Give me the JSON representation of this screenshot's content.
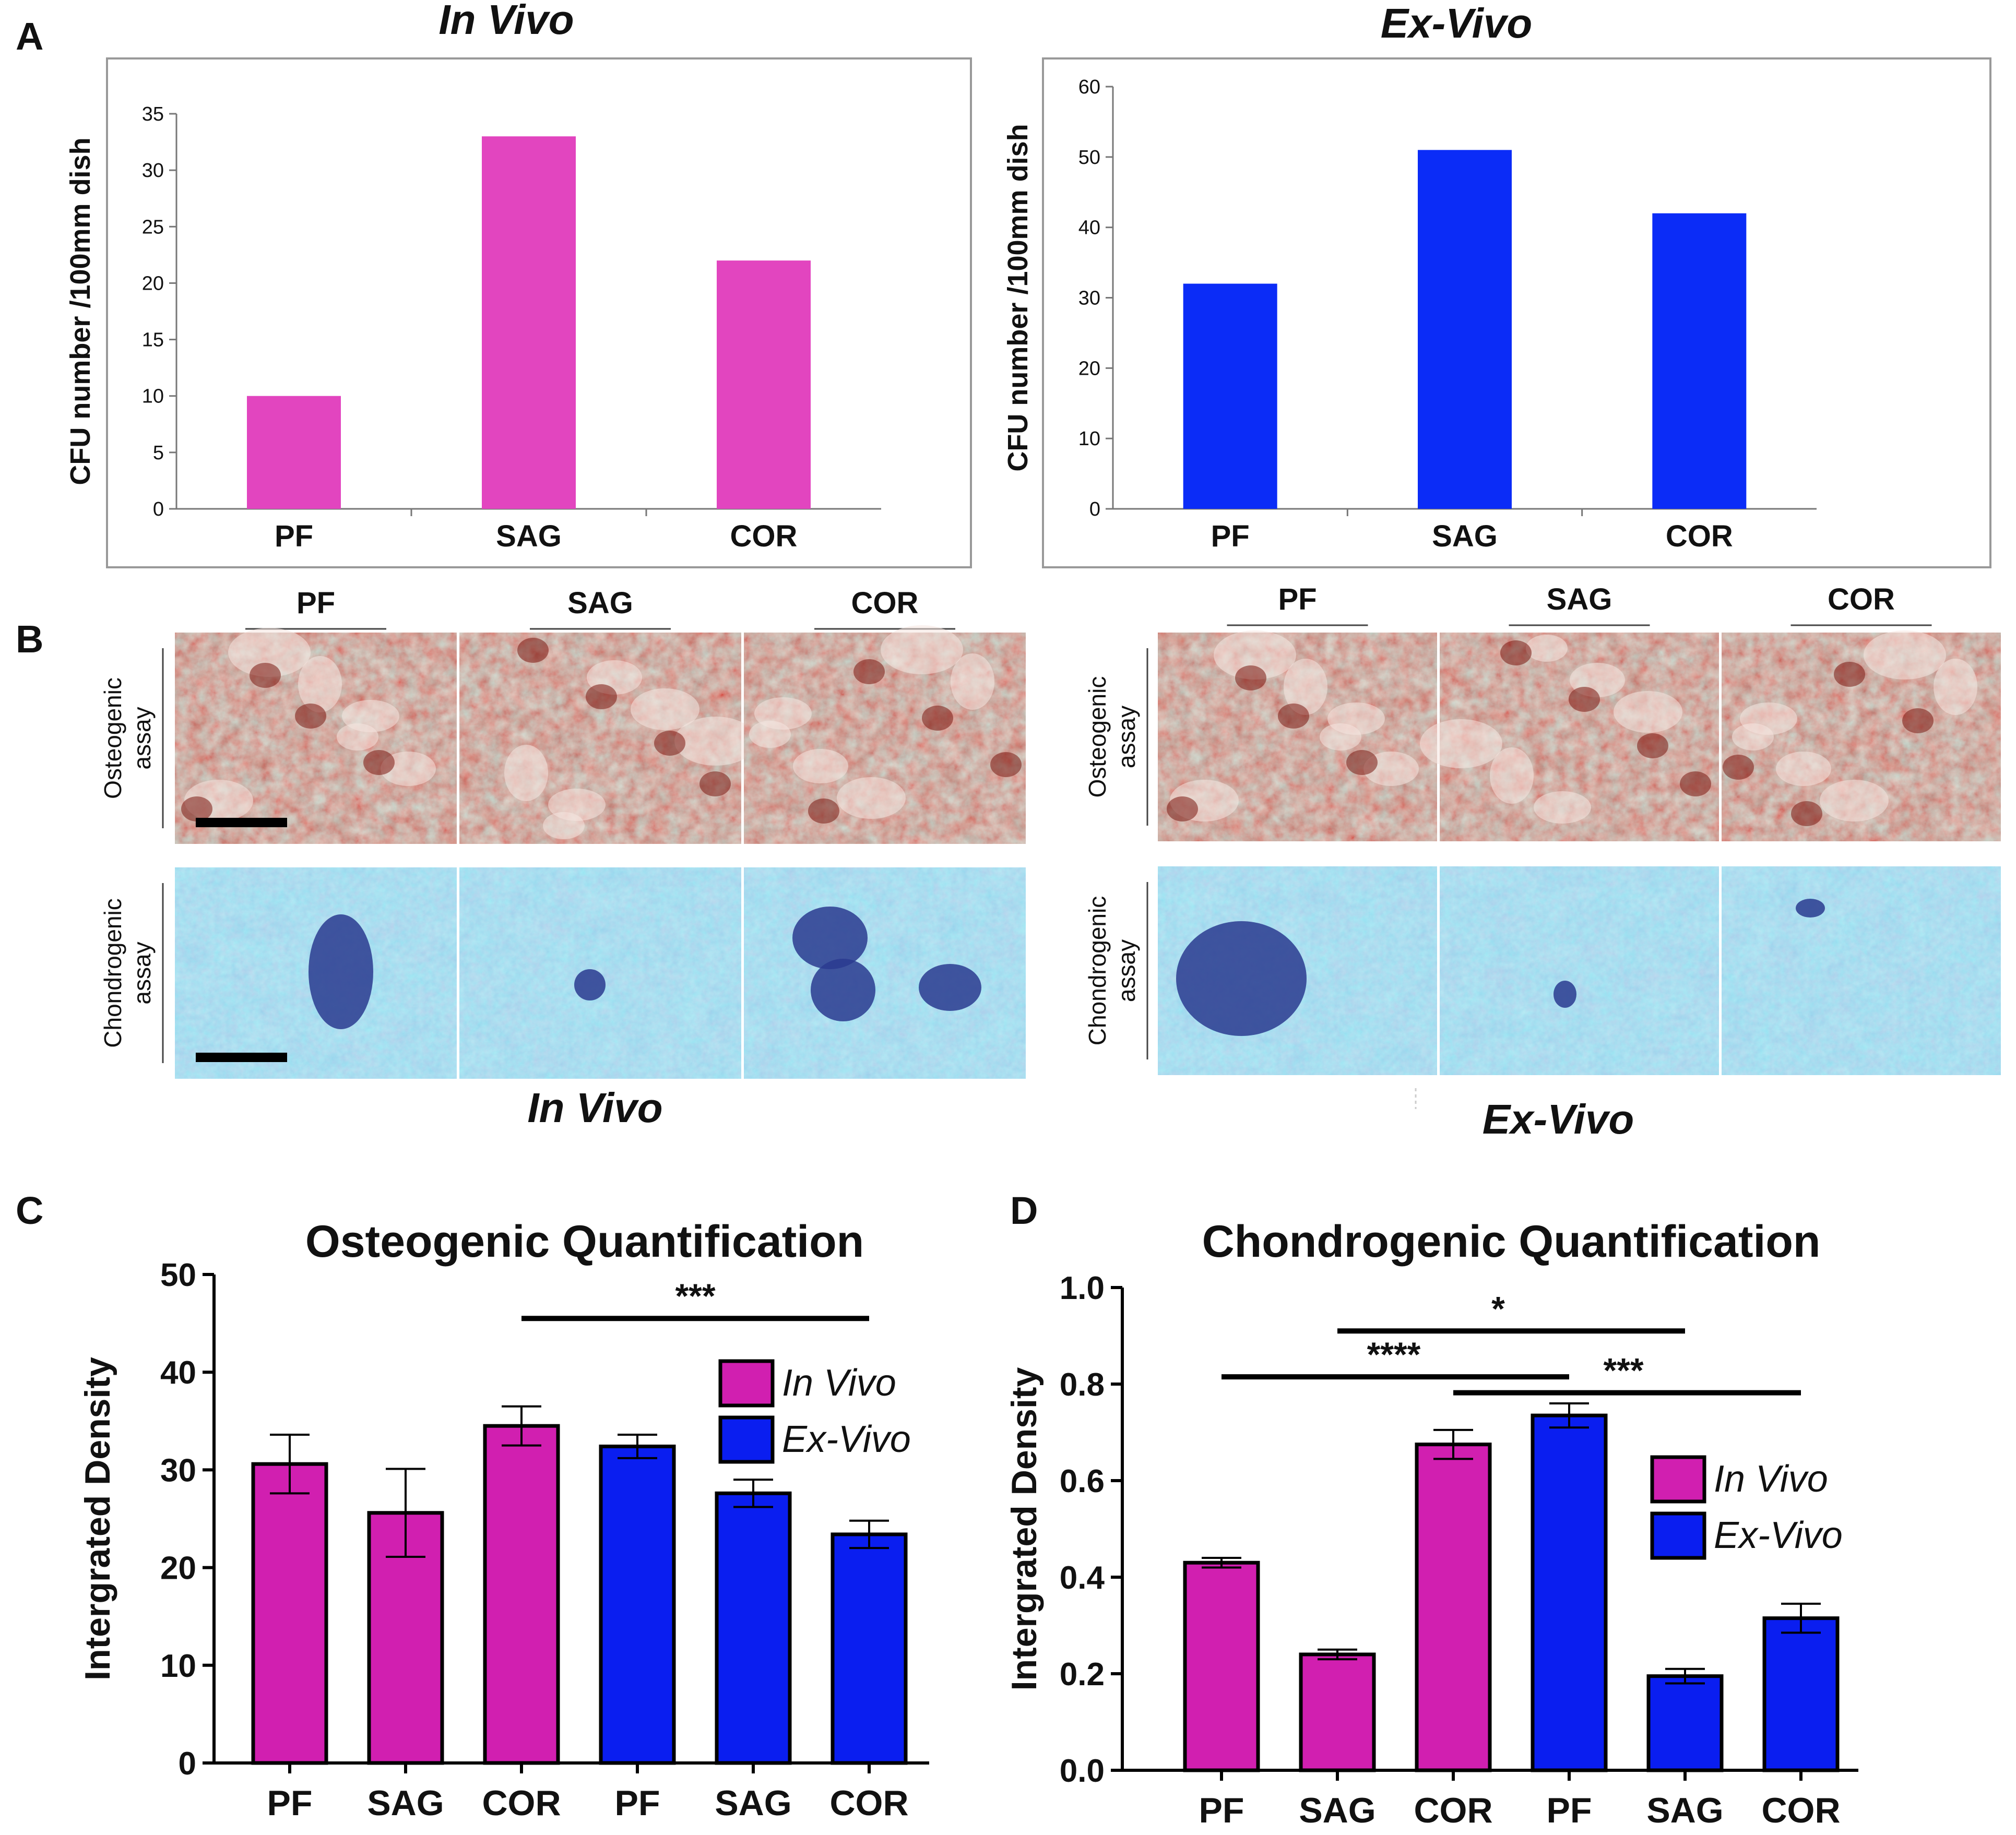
{
  "panels": {
    "A": {
      "letter": "A"
    },
    "B": {
      "letter": "B"
    },
    "C": {
      "letter": "C"
    },
    "D": {
      "letter": "D"
    }
  },
  "micrographs": {
    "in_vivo": {
      "caption": "In Vivo",
      "columns": [
        "PF",
        "SAG",
        "COR"
      ],
      "rows": [
        "Osteogenic assay",
        "Chondrogenic assay"
      ],
      "row_lines": [
        [
          "Osteogenic",
          "assay"
        ],
        [
          "Chondrogenic",
          "assay"
        ]
      ]
    },
    "ex_vivo": {
      "caption": "Ex-Vivo",
      "columns": [
        "PF",
        "SAG",
        "COR"
      ],
      "rows": [
        "Osteogenic assay",
        "Chondrogenic assay"
      ],
      "row_lines": [
        [
          "Osteogenic",
          "assay"
        ],
        [
          "Chondrogenic",
          "assay"
        ]
      ]
    }
  },
  "colors": {
    "a_in_vivo": "#e245bf",
    "a_ex_vivo": "#0b2cf7",
    "in_vivo": "#d11fb0",
    "ex_vivo": "#0a1ef0",
    "osteo_base": "#c8452a",
    "chondro_base": "#6cc4e6"
  },
  "chart_data": [
    {
      "id": "A-in-vivo",
      "type": "bar",
      "title": "In Vivo",
      "xlabel": "",
      "ylabel": "CFU number /100mm dish",
      "categories": [
        "PF",
        "SAG",
        "COR"
      ],
      "values": [
        10,
        33,
        22
      ],
      "ylim": [
        0,
        35
      ],
      "yticks": [
        0,
        5,
        10,
        15,
        20,
        25,
        30,
        35
      ],
      "grid": false
    },
    {
      "id": "A-ex-vivo",
      "type": "bar",
      "title": "Ex-Vivo",
      "xlabel": "",
      "ylabel": "CFU number /100mm dish",
      "categories": [
        "PF",
        "SAG",
        "COR"
      ],
      "values": [
        32,
        51,
        42
      ],
      "ylim": [
        0,
        60
      ],
      "yticks": [
        0,
        10,
        20,
        30,
        40,
        50,
        60
      ],
      "grid": false
    },
    {
      "id": "C",
      "type": "bar",
      "title": "Osteogenic Quantification",
      "xlabel": "",
      "ylabel": "Intergrated Density",
      "categories": [
        "PF",
        "SAG",
        "COR",
        "PF",
        "SAG",
        "COR"
      ],
      "series": [
        {
          "name": "In Vivo",
          "values": [
            30.6,
            25.6,
            34.5,
            null,
            null,
            null
          ],
          "errors": [
            3.0,
            4.5,
            2.0,
            null,
            null,
            null
          ]
        },
        {
          "name": "Ex-Vivo",
          "values": [
            null,
            null,
            null,
            32.4,
            27.6,
            23.4
          ],
          "errors": [
            null,
            null,
            null,
            1.2,
            1.4,
            1.4
          ]
        }
      ],
      "ylim": [
        0,
        50
      ],
      "yticks": [
        "0",
        "10",
        "20",
        "30",
        "40",
        "50"
      ],
      "legend": "top-right",
      "significance": [
        {
          "from": 2,
          "to": 5,
          "label": "***",
          "y": 45.5
        }
      ]
    },
    {
      "id": "D",
      "type": "bar",
      "title": "Chondrogenic Quantification",
      "xlabel": "",
      "ylabel": "Intergrated Density",
      "categories": [
        "PF",
        "SAG",
        "COR",
        "PF",
        "SAG",
        "COR"
      ],
      "series": [
        {
          "name": "In Vivo",
          "values": [
            0.43,
            0.24,
            0.675,
            null,
            null,
            null
          ],
          "errors": [
            0.01,
            0.01,
            0.03,
            null,
            null,
            null
          ]
        },
        {
          "name": "Ex-Vivo",
          "values": [
            null,
            null,
            null,
            0.735,
            0.195,
            0.315
          ],
          "errors": [
            null,
            null,
            null,
            0.025,
            0.015,
            0.03
          ]
        }
      ],
      "ylim": [
        0,
        1.0
      ],
      "yticks": [
        "0.0",
        "0.2",
        "0.4",
        "0.6",
        "0.8",
        "1.0"
      ],
      "legend": "center-right",
      "significance": [
        {
          "from": 1,
          "to": 4,
          "label": "*",
          "y": 0.91
        },
        {
          "from": 0,
          "to": 3,
          "label": "****",
          "y": 0.815
        },
        {
          "from": 2,
          "to": 5,
          "label": "***",
          "y": 0.782
        }
      ]
    }
  ]
}
